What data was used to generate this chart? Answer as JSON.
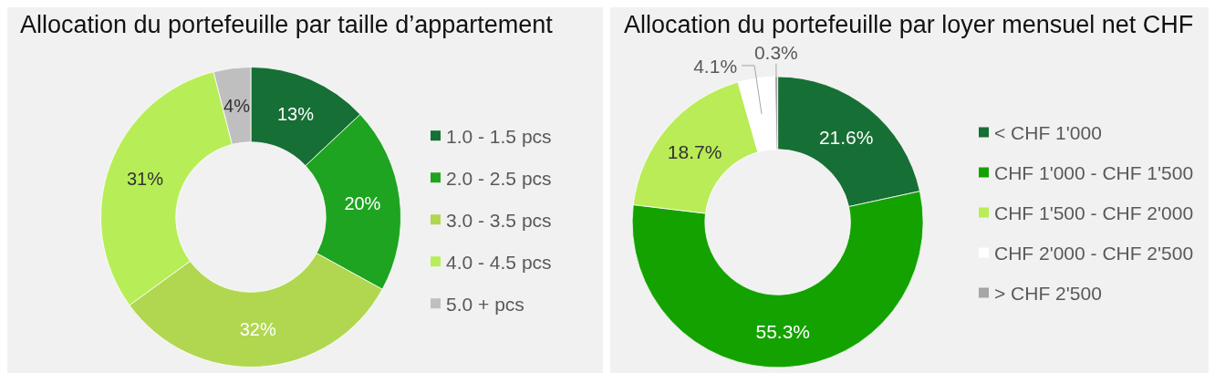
{
  "chart_data": [
    {
      "type": "donut",
      "title": "Allocation du portefeuille par taille d’appartement",
      "categories": [
        "1.0 - 1.5 pcs",
        "2.0 - 2.5 pcs",
        "3.0 - 3.5 pcs",
        "4.0 - 4.5 pcs",
        "5.0 + pcs"
      ],
      "values": [
        13,
        20,
        32,
        31,
        4
      ],
      "colors": [
        "#166f35",
        "#1ea420",
        "#b0d74f",
        "#b7ee57",
        "#bfbfbf"
      ],
      "value_labels": [
        "13%",
        "20%",
        "32%",
        "31%",
        "4%"
      ],
      "legend": "right"
    },
    {
      "type": "donut",
      "title": "Allocation du portefeuille par loyer mensuel net CHF",
      "categories": [
        "< CHF 1'000",
        "CHF 1'000 - CHF 1'500",
        "CHF 1'500 - CHF 2'000",
        "CHF 2'000 - CHF 2'500",
        "> CHF 2'500"
      ],
      "values": [
        21.6,
        55.3,
        18.7,
        4.1,
        0.3
      ],
      "colors": [
        "#166f35",
        "#14a200",
        "#b9ec56",
        "#ffffff",
        "#a6a6a6"
      ],
      "value_labels": [
        "21.6%",
        "55.3%",
        "18.7%",
        "4.1%",
        "0.3%"
      ],
      "legend": "right"
    }
  ]
}
